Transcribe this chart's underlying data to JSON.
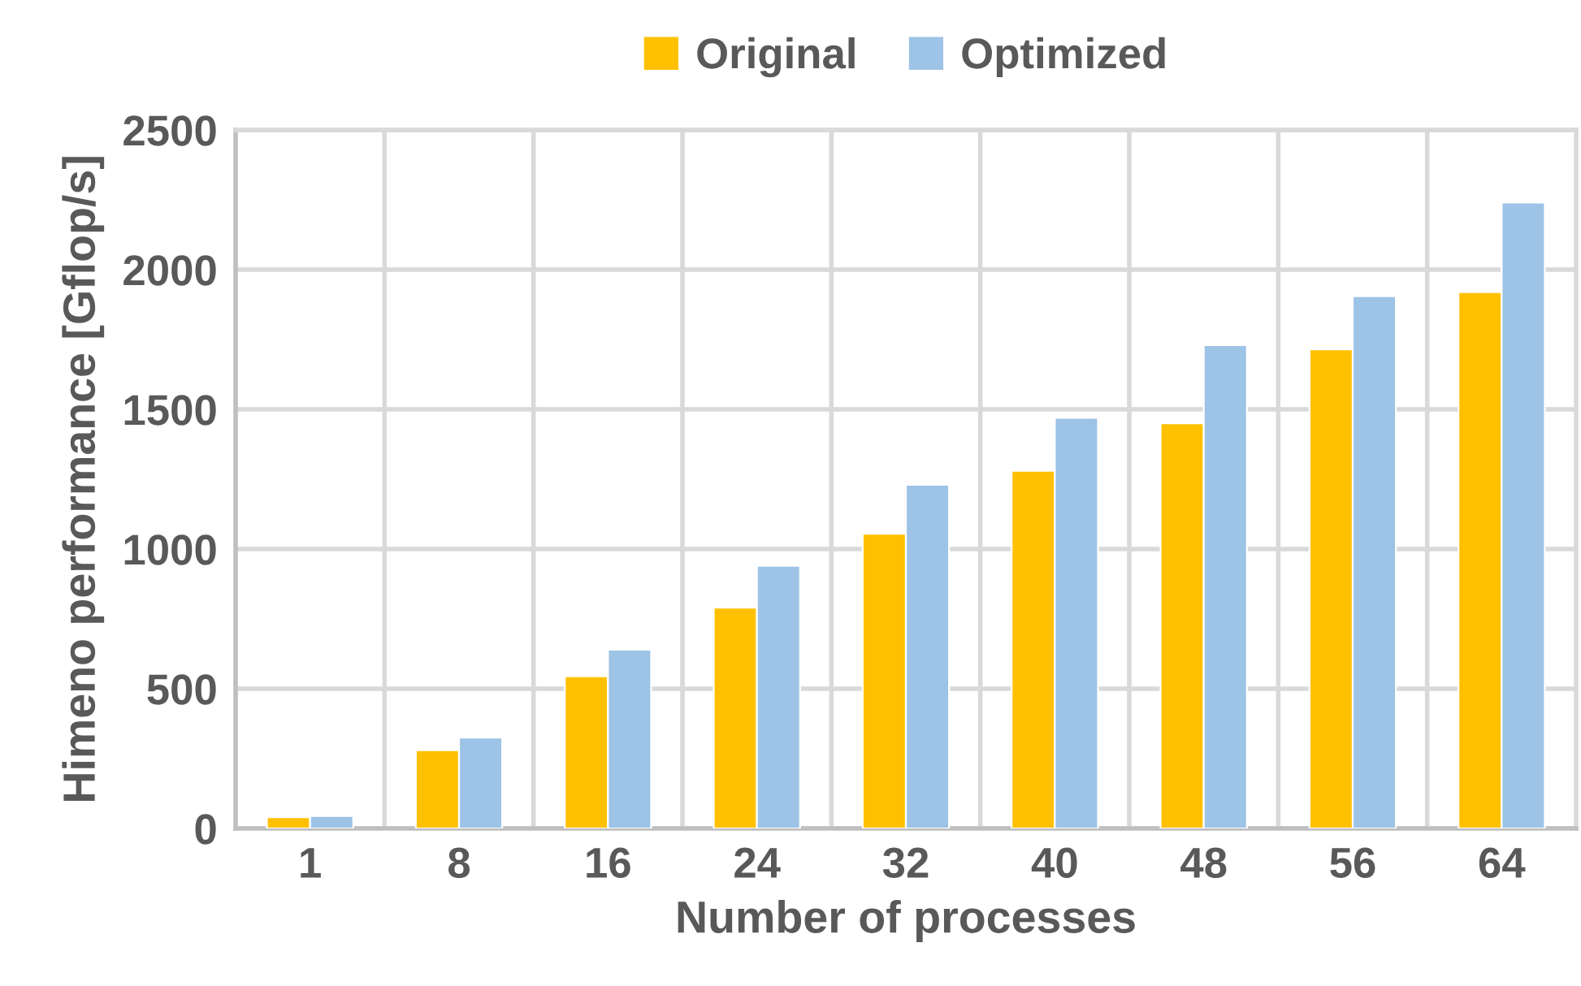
{
  "chart_data": {
    "type": "bar",
    "xlabel": "Number of processes",
    "ylabel": "Himeno performance [Gflop/s]",
    "categories": [
      "1",
      "8",
      "16",
      "24",
      "32",
      "40",
      "48",
      "56",
      "64"
    ],
    "series": [
      {
        "name": "Original",
        "color": "#ffc000",
        "values": [
          40,
          280,
          545,
          790,
          1055,
          1280,
          1450,
          1715,
          1920
        ]
      },
      {
        "name": "Optimized",
        "color": "#9dc3e6",
        "values": [
          45,
          325,
          640,
          940,
          1230,
          1470,
          1730,
          1905,
          2240
        ]
      }
    ],
    "ylim": [
      0,
      2500
    ],
    "yticks": [
      0,
      500,
      1000,
      1500,
      2000,
      2500
    ],
    "grid": true,
    "legend": "top"
  }
}
